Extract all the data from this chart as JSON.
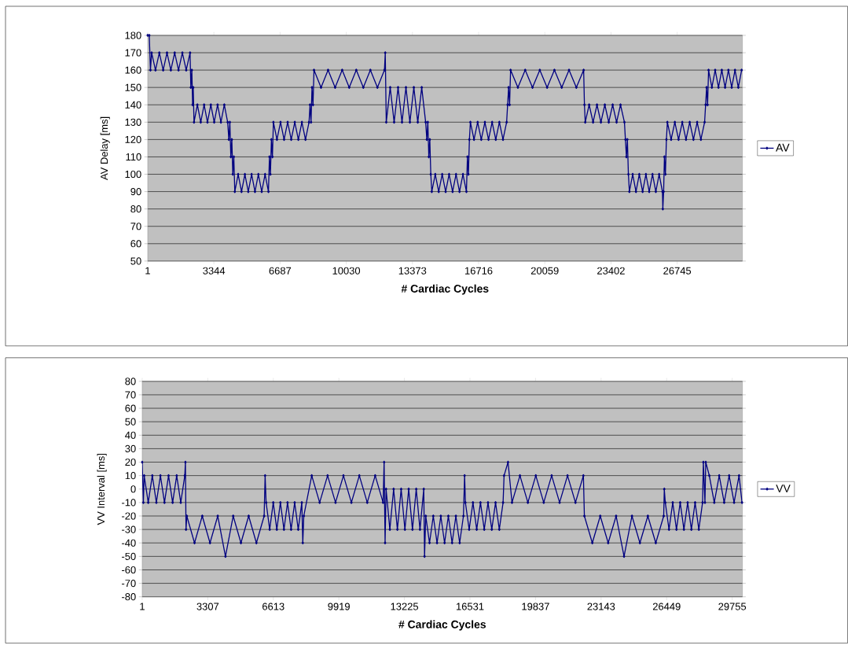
{
  "chart_data": [
    {
      "type": "line",
      "xlabel": "# Cardiac Cycles",
      "ylabel": "AV Delay [ms]",
      "xlim": [
        1,
        30040
      ],
      "xticks": [
        1,
        3344,
        6687,
        10030,
        13373,
        16716,
        20059,
        23402,
        26745
      ],
      "ylim": [
        50,
        180
      ],
      "yticks": [
        50,
        60,
        70,
        80,
        90,
        100,
        110,
        120,
        130,
        140,
        150,
        160,
        170,
        180
      ],
      "grid": "y",
      "legend": "right",
      "marker": "diamond",
      "line_style": "solid",
      "x": [
        1,
        80,
        140,
        200,
        394,
        588,
        782,
        976,
        1170,
        1364,
        1558,
        1752,
        1946,
        2140,
        2180,
        2230,
        2270,
        2300,
        2340,
        2510,
        2680,
        2850,
        3020,
        3190,
        3360,
        3530,
        3700,
        3870,
        4040,
        4100,
        4150,
        4200,
        4250,
        4300,
        4350,
        4400,
        4570,
        4740,
        4910,
        5080,
        5250,
        5420,
        5590,
        5760,
        5930,
        6100,
        6150,
        6200,
        6250,
        6300,
        6350,
        6530,
        6710,
        6890,
        7070,
        7250,
        7430,
        7610,
        7790,
        7970,
        8150,
        8200,
        8250,
        8300,
        8350,
        8400,
        8756,
        9112,
        9468,
        9824,
        10180,
        10536,
        10892,
        11248,
        11604,
        11960,
        12000,
        12050,
        12249,
        12448,
        12647,
        12846,
        13045,
        13244,
        13443,
        13642,
        13841,
        14040,
        14100,
        14150,
        14200,
        14250,
        14300,
        14350,
        14525,
        14700,
        14875,
        15050,
        15225,
        15400,
        15575,
        15750,
        15925,
        16100,
        16150,
        16200,
        16250,
        16300,
        16483,
        16666,
        16849,
        17032,
        17215,
        17398,
        17581,
        17764,
        17947,
        18130,
        18180,
        18230,
        18280,
        18330,
        18699,
        19068,
        19437,
        19806,
        20175,
        20544,
        20913,
        21282,
        21651,
        22020,
        22060,
        22100,
        22298,
        22496,
        22694,
        22892,
        23090,
        23288,
        23486,
        23684,
        23882,
        24080,
        24130,
        24180,
        24230,
        24280,
        24330,
        24497,
        24664,
        24831,
        24998,
        25165,
        25332,
        25499,
        25666,
        25833,
        26000,
        26020,
        26060,
        26100,
        26150,
        26200,
        26250,
        26438,
        26626,
        26814,
        27002,
        27190,
        27378,
        27566,
        27754,
        27942,
        28130,
        28180,
        28230,
        28280,
        28330,
        28497,
        28664,
        28831,
        28998,
        29165,
        29332,
        29499,
        29666,
        29833,
        30000
      ],
      "series": [
        {
          "name": "AV",
          "color": "#000080",
          "values": [
            180,
            180,
            160,
            170,
            160,
            170,
            160,
            170,
            160,
            170,
            160,
            170,
            160,
            170,
            150,
            160,
            140,
            150,
            130,
            140,
            130,
            140,
            130,
            140,
            130,
            140,
            130,
            140,
            130,
            120,
            130,
            110,
            120,
            100,
            110,
            90,
            100,
            90,
            100,
            90,
            100,
            90,
            100,
            90,
            100,
            90,
            110,
            100,
            120,
            110,
            130,
            120,
            130,
            120,
            130,
            120,
            130,
            120,
            130,
            120,
            130,
            140,
            130,
            150,
            140,
            160,
            150,
            160,
            150,
            160,
            150,
            160,
            150,
            160,
            150,
            160,
            170,
            130,
            150,
            130,
            150,
            130,
            150,
            130,
            150,
            130,
            150,
            130,
            120,
            130,
            110,
            120,
            100,
            90,
            100,
            90,
            100,
            90,
            100,
            90,
            100,
            90,
            100,
            90,
            110,
            100,
            120,
            130,
            120,
            130,
            120,
            130,
            120,
            130,
            120,
            130,
            120,
            130,
            140,
            150,
            140,
            160,
            150,
            160,
            150,
            160,
            150,
            160,
            150,
            160,
            150,
            160,
            140,
            130,
            140,
            130,
            140,
            130,
            140,
            130,
            140,
            130,
            140,
            130,
            120,
            110,
            120,
            100,
            90,
            100,
            90,
            100,
            90,
            100,
            90,
            100,
            90,
            100,
            90,
            80,
            90,
            110,
            100,
            120,
            130,
            120,
            130,
            120,
            130,
            120,
            130,
            120,
            130,
            120,
            130,
            140,
            150,
            140,
            160,
            150,
            160,
            150,
            160,
            150,
            160,
            150,
            160,
            150,
            160
          ]
        }
      ]
    },
    {
      "type": "line",
      "xlabel": "# Cardiac Cycles",
      "ylabel": "VV Interval [ms]",
      "xlim": [
        1,
        30270
      ],
      "xticks": [
        1,
        3307,
        6613,
        9919,
        13225,
        16531,
        19837,
        23143,
        26449,
        29755
      ],
      "ylim": [
        -80,
        80
      ],
      "yticks": [
        -80,
        -70,
        -60,
        -50,
        -40,
        -30,
        -20,
        -10,
        0,
        10,
        20,
        30,
        40,
        50,
        60,
        70,
        80
      ],
      "grid": "y",
      "legend": "right",
      "marker": "diamond",
      "line_style": "solid",
      "x": [
        1,
        60,
        100,
        305,
        510,
        715,
        920,
        1125,
        1330,
        1535,
        1740,
        1945,
        2150,
        2180,
        2210,
        2250,
        2640,
        3030,
        3420,
        3810,
        4200,
        4590,
        4980,
        5370,
        5760,
        6150,
        6200,
        6250,
        6430,
        6610,
        6790,
        6970,
        7150,
        7330,
        7510,
        7690,
        7870,
        8050,
        8100,
        8150,
        8550,
        8950,
        9350,
        9750,
        10150,
        10550,
        10950,
        11350,
        11750,
        12150,
        12200,
        12250,
        12300,
        12490,
        12680,
        12870,
        13060,
        13250,
        13440,
        13630,
        13820,
        14010,
        14200,
        14240,
        14300,
        14490,
        14680,
        14870,
        15060,
        15250,
        15440,
        15630,
        15820,
        16010,
        16200,
        16260,
        16300,
        16490,
        16680,
        16870,
        17060,
        17250,
        17440,
        17630,
        17820,
        18010,
        18200,
        18250,
        18450,
        18650,
        19050,
        19450,
        19850,
        20250,
        20650,
        21050,
        21450,
        21850,
        22250,
        22300,
        22700,
        23100,
        23500,
        23900,
        24300,
        24700,
        25100,
        25500,
        25900,
        26300,
        26330,
        26380,
        26568,
        26756,
        26944,
        27132,
        27320,
        27508,
        27696,
        27884,
        28072,
        28260,
        28300,
        28380,
        28420,
        28600,
        28850,
        29100,
        29350,
        29600,
        29850,
        30100,
        30250
      ],
      "series": [
        {
          "name": "VV",
          "color": "#000080",
          "values": [
            20,
            -10,
            10,
            -10,
            10,
            -10,
            10,
            -10,
            10,
            -10,
            10,
            -10,
            10,
            20,
            -30,
            -20,
            -40,
            -20,
            -40,
            -20,
            -50,
            -20,
            -40,
            -20,
            -40,
            -20,
            10,
            -10,
            -30,
            -10,
            -30,
            -10,
            -30,
            -10,
            -30,
            -10,
            -30,
            -10,
            -40,
            -20,
            10,
            -10,
            10,
            -10,
            10,
            -10,
            10,
            -10,
            10,
            -10,
            20,
            -40,
            0,
            -30,
            0,
            -30,
            0,
            -30,
            0,
            -30,
            0,
            -30,
            0,
            -50,
            -20,
            -40,
            -20,
            -40,
            -20,
            -40,
            -20,
            -40,
            -20,
            -40,
            -20,
            10,
            -10,
            -30,
            -10,
            -30,
            -10,
            -30,
            -10,
            -30,
            -10,
            -30,
            -10,
            10,
            20,
            -10,
            10,
            -10,
            10,
            -10,
            10,
            -10,
            10,
            -10,
            10,
            -20,
            -40,
            -20,
            -40,
            -20,
            -50,
            -20,
            -40,
            -20,
            -40,
            -20,
            0,
            -10,
            -30,
            -10,
            -30,
            -10,
            -30,
            -10,
            -30,
            -10,
            -30,
            -10,
            20,
            -10,
            20,
            10,
            -10,
            10,
            -10,
            10,
            -10,
            10,
            -10
          ]
        }
      ]
    }
  ]
}
